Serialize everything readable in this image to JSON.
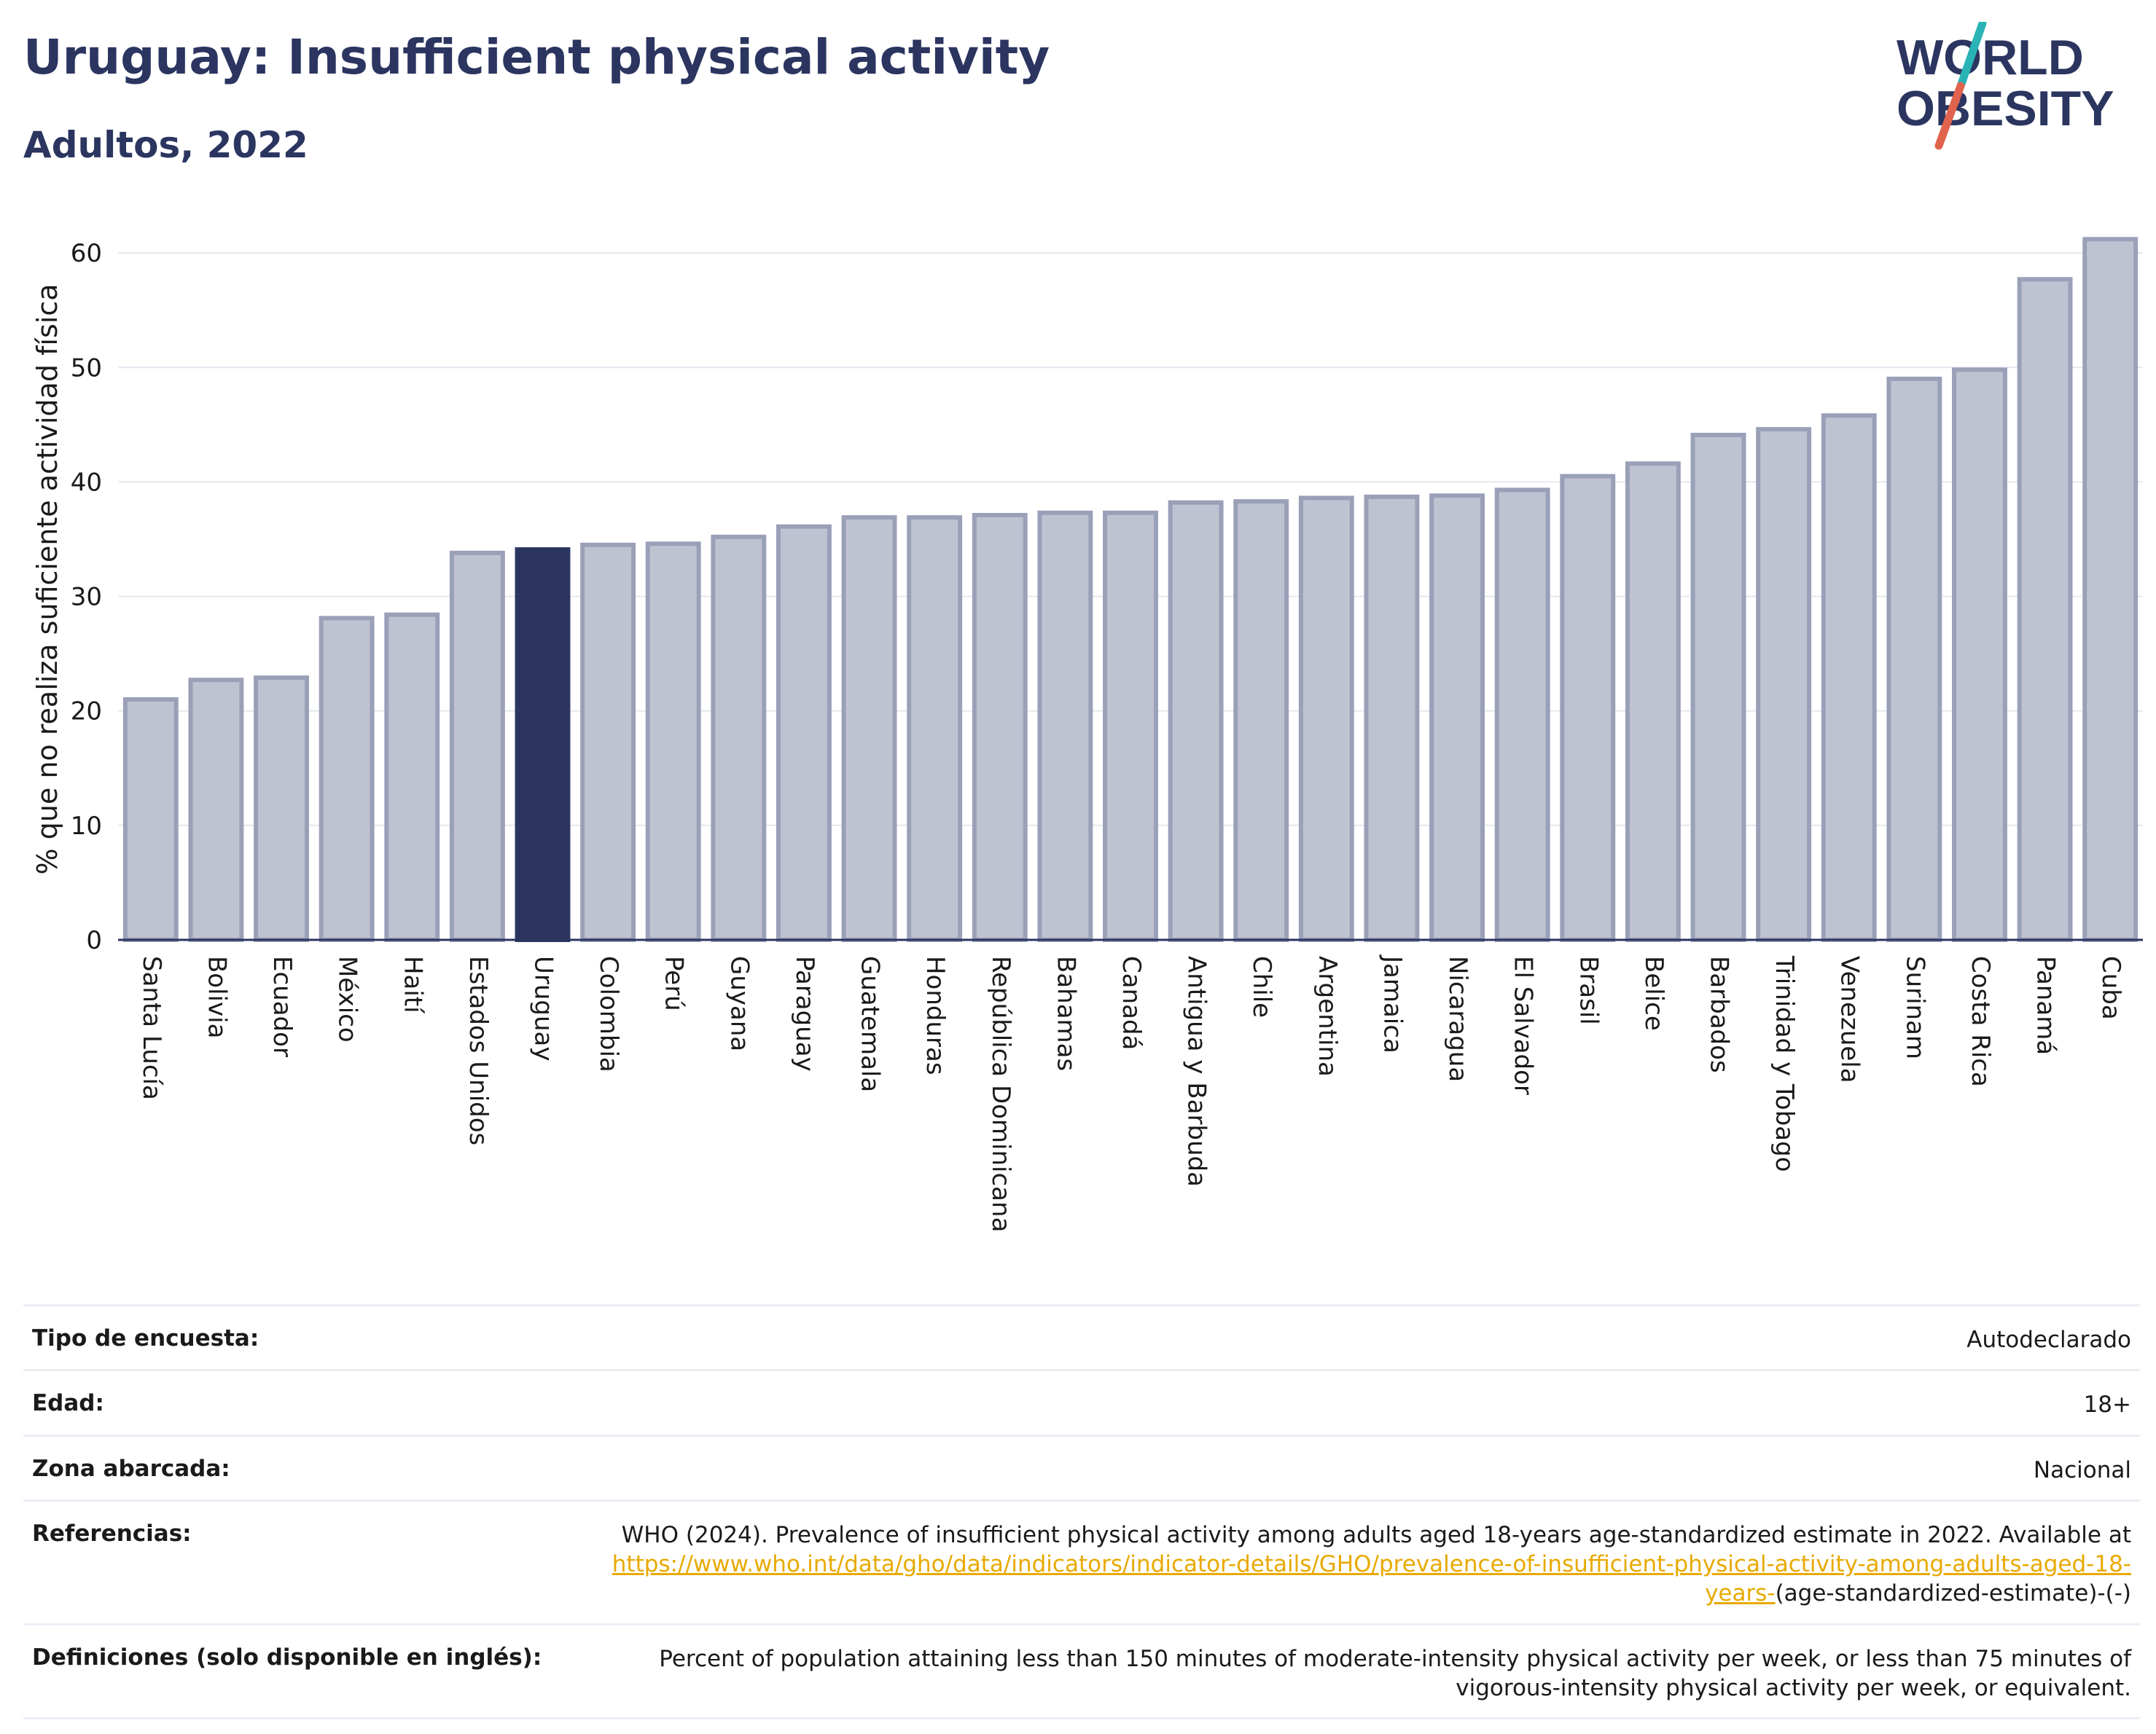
{
  "header": {
    "title": "Uruguay: Insufficient physical activity",
    "subtitle": "Adultos, 2022"
  },
  "logo": {
    "line1": "WORLD",
    "line2": "OBESITY",
    "brand_color": "#2b3560",
    "slash_colors": [
      "#2ab3b5",
      "#e2634d"
    ]
  },
  "chart_data": {
    "type": "bar",
    "ylabel": "% que no realiza suficiente actividad física",
    "ylim": [
      0,
      63
    ],
    "yticks": [
      0,
      10,
      20,
      30,
      40,
      50,
      60
    ],
    "grid": true,
    "highlight": "Uruguay",
    "colors": {
      "bar": "#bfc2d0",
      "bar_edge": "#9aa0b8",
      "highlight": "#2b3560"
    },
    "categories": [
      "Santa Lucía",
      "Bolivia",
      "Ecuador",
      "México",
      "Haití",
      "Estados Unidos",
      "Uruguay",
      "Colombia",
      "Perú",
      "Guyana",
      "Paraguay",
      "Guatemala",
      "Honduras",
      "República Dominicana",
      "Bahamas",
      "Canadá",
      "Antigua y Barbuda",
      "Chile",
      "Argentina",
      "Jamaica",
      "Nicaragua",
      "El Salvador",
      "Brasil",
      "Belice",
      "Barbados",
      "Trinidad y Tobago",
      "Venezuela",
      "Surinam",
      "Costa Rica",
      "Panamá",
      "Cuba"
    ],
    "values": [
      21.0,
      22.7,
      22.9,
      28.1,
      28.4,
      33.8,
      34.1,
      34.5,
      34.6,
      35.2,
      36.1,
      36.9,
      36.9,
      37.1,
      37.3,
      37.3,
      38.2,
      38.3,
      38.6,
      38.7,
      38.8,
      39.3,
      40.5,
      41.6,
      44.1,
      44.6,
      45.8,
      49.0,
      49.8,
      57.7,
      61.2
    ]
  },
  "meta": {
    "rows": [
      {
        "label": "Tipo de encuesta:",
        "value": "Autodeclarado"
      },
      {
        "label": "Edad:",
        "value": "18+"
      },
      {
        "label": "Zona abarcada:",
        "value": "Nacional"
      }
    ],
    "references": {
      "label": "Referencias:",
      "text": "WHO (2024). Prevalence of insufficient physical activity among adults aged 18-years age-standardized estimate in 2022. Available at",
      "link": "https://www.who.int/data/gho/data/indicators/indicator-details/GHO/prevalence-of-insufficient-physical-activity-among-adults-aged-18-years-",
      "suffix": "(age-standardized-estimate)-(-)"
    },
    "definitions": {
      "label": "Definiciones (solo disponible en inglés):",
      "value": "Percent of population attaining less than 150 minutes of moderate-intensity physical activity per week, or less than 75 minutes of vigorous-intensity physical activity per week, or equivalent."
    }
  }
}
